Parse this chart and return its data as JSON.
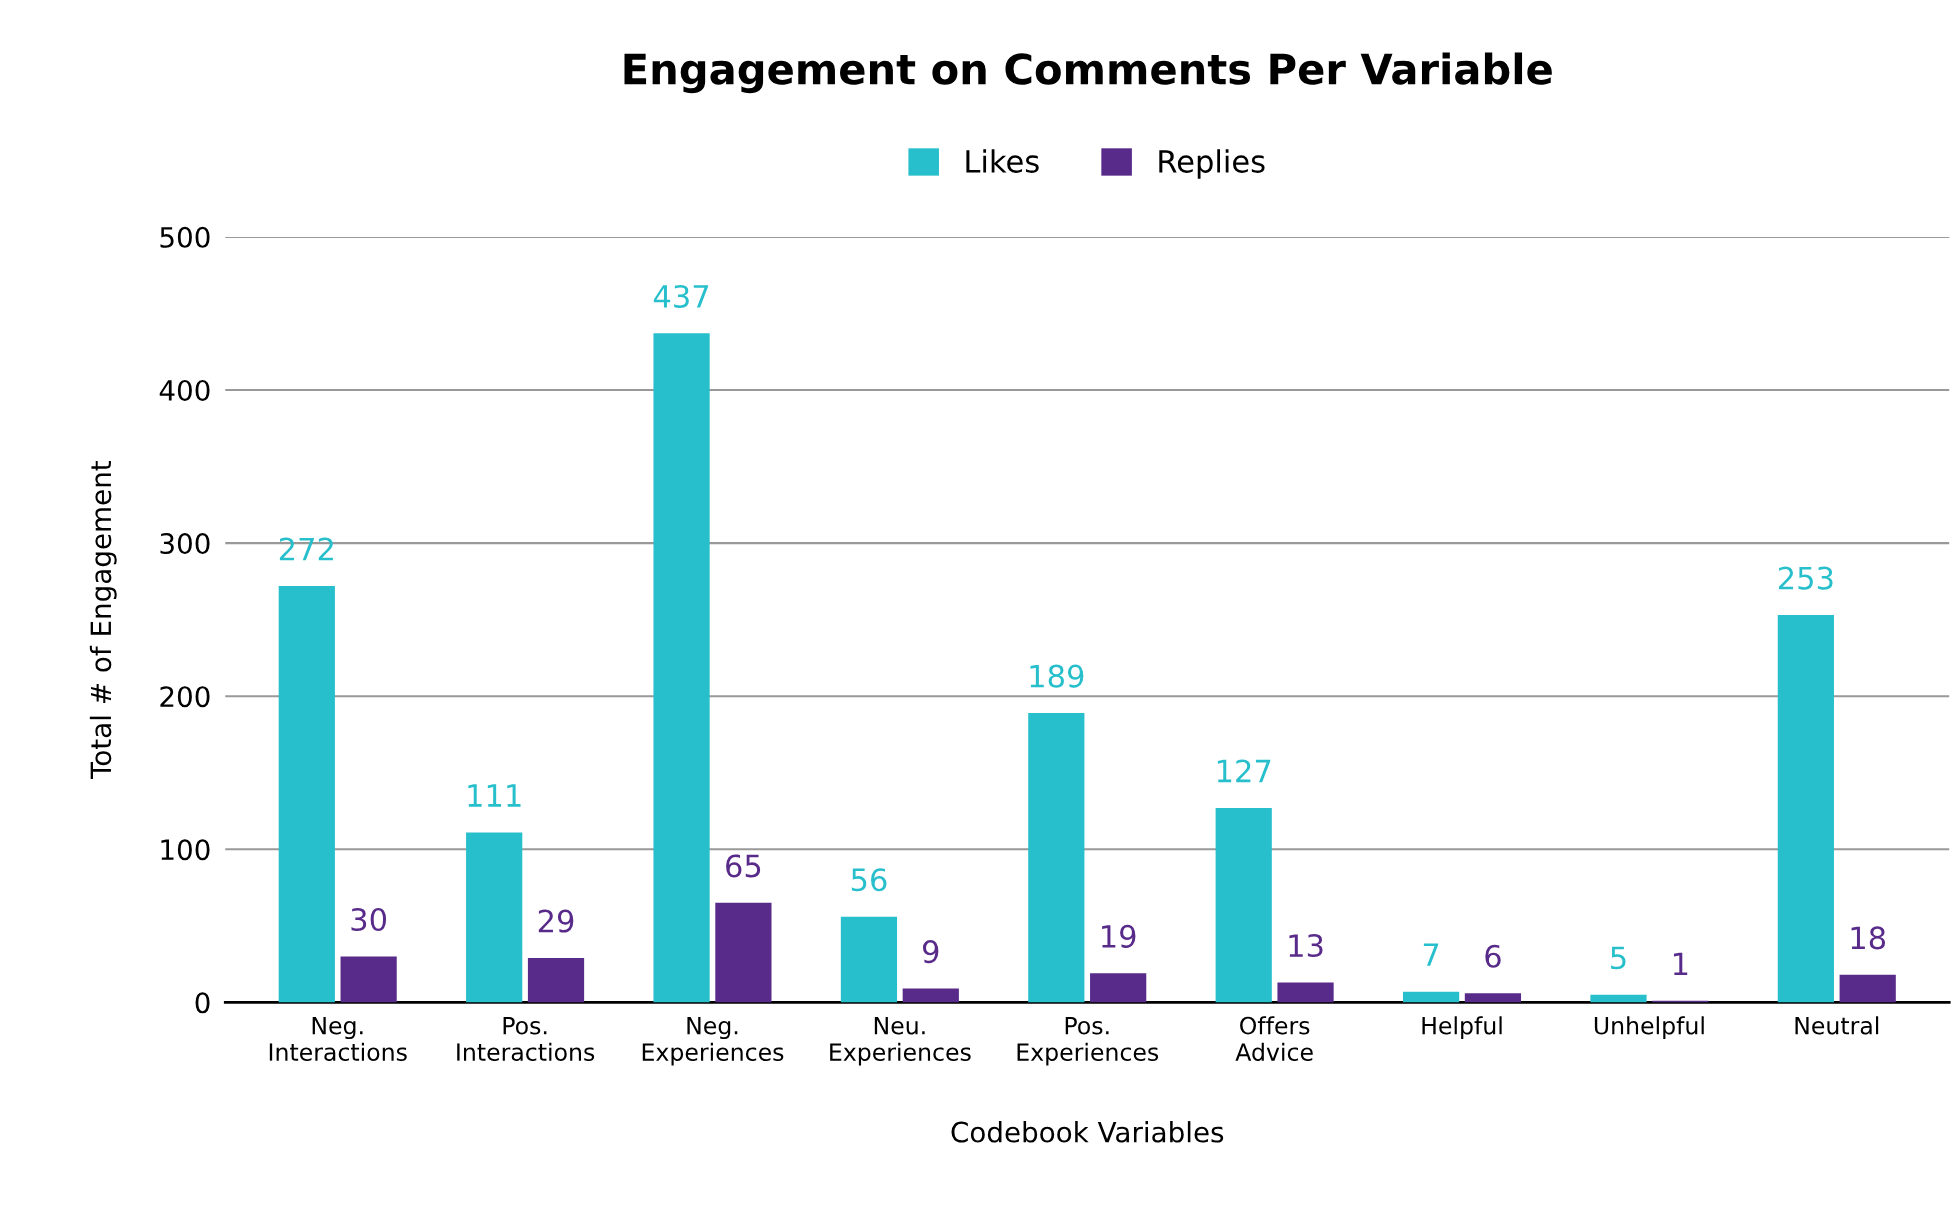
{
  "chart_data": {
    "type": "bar",
    "title": "Engagement on Comments Per Variable",
    "xlabel": "Codebook Variables",
    "ylabel": "Total # of Engagement",
    "categories": [
      "Neg.\nInteractions",
      "Pos.\nInteractions",
      "Neg.\nExperiences",
      "Neu.\nExperiences",
      "Pos.\nExperiences",
      "Offers\nAdvice",
      "Helpful",
      "Unhelpful",
      "Neutral"
    ],
    "series": [
      {
        "name": "Likes",
        "color": "#26bfcb",
        "values": [
          272,
          111,
          437,
          56,
          189,
          127,
          7,
          5,
          253
        ]
      },
      {
        "name": "Replies",
        "color": "#582a8a",
        "values": [
          30,
          29,
          65,
          9,
          19,
          13,
          6,
          1,
          18
        ]
      }
    ],
    "ylim": [
      0,
      500
    ],
    "yticks": [
      0,
      100,
      200,
      300,
      400,
      500
    ],
    "grid": "y",
    "legend": "top",
    "data_labels": true
  }
}
